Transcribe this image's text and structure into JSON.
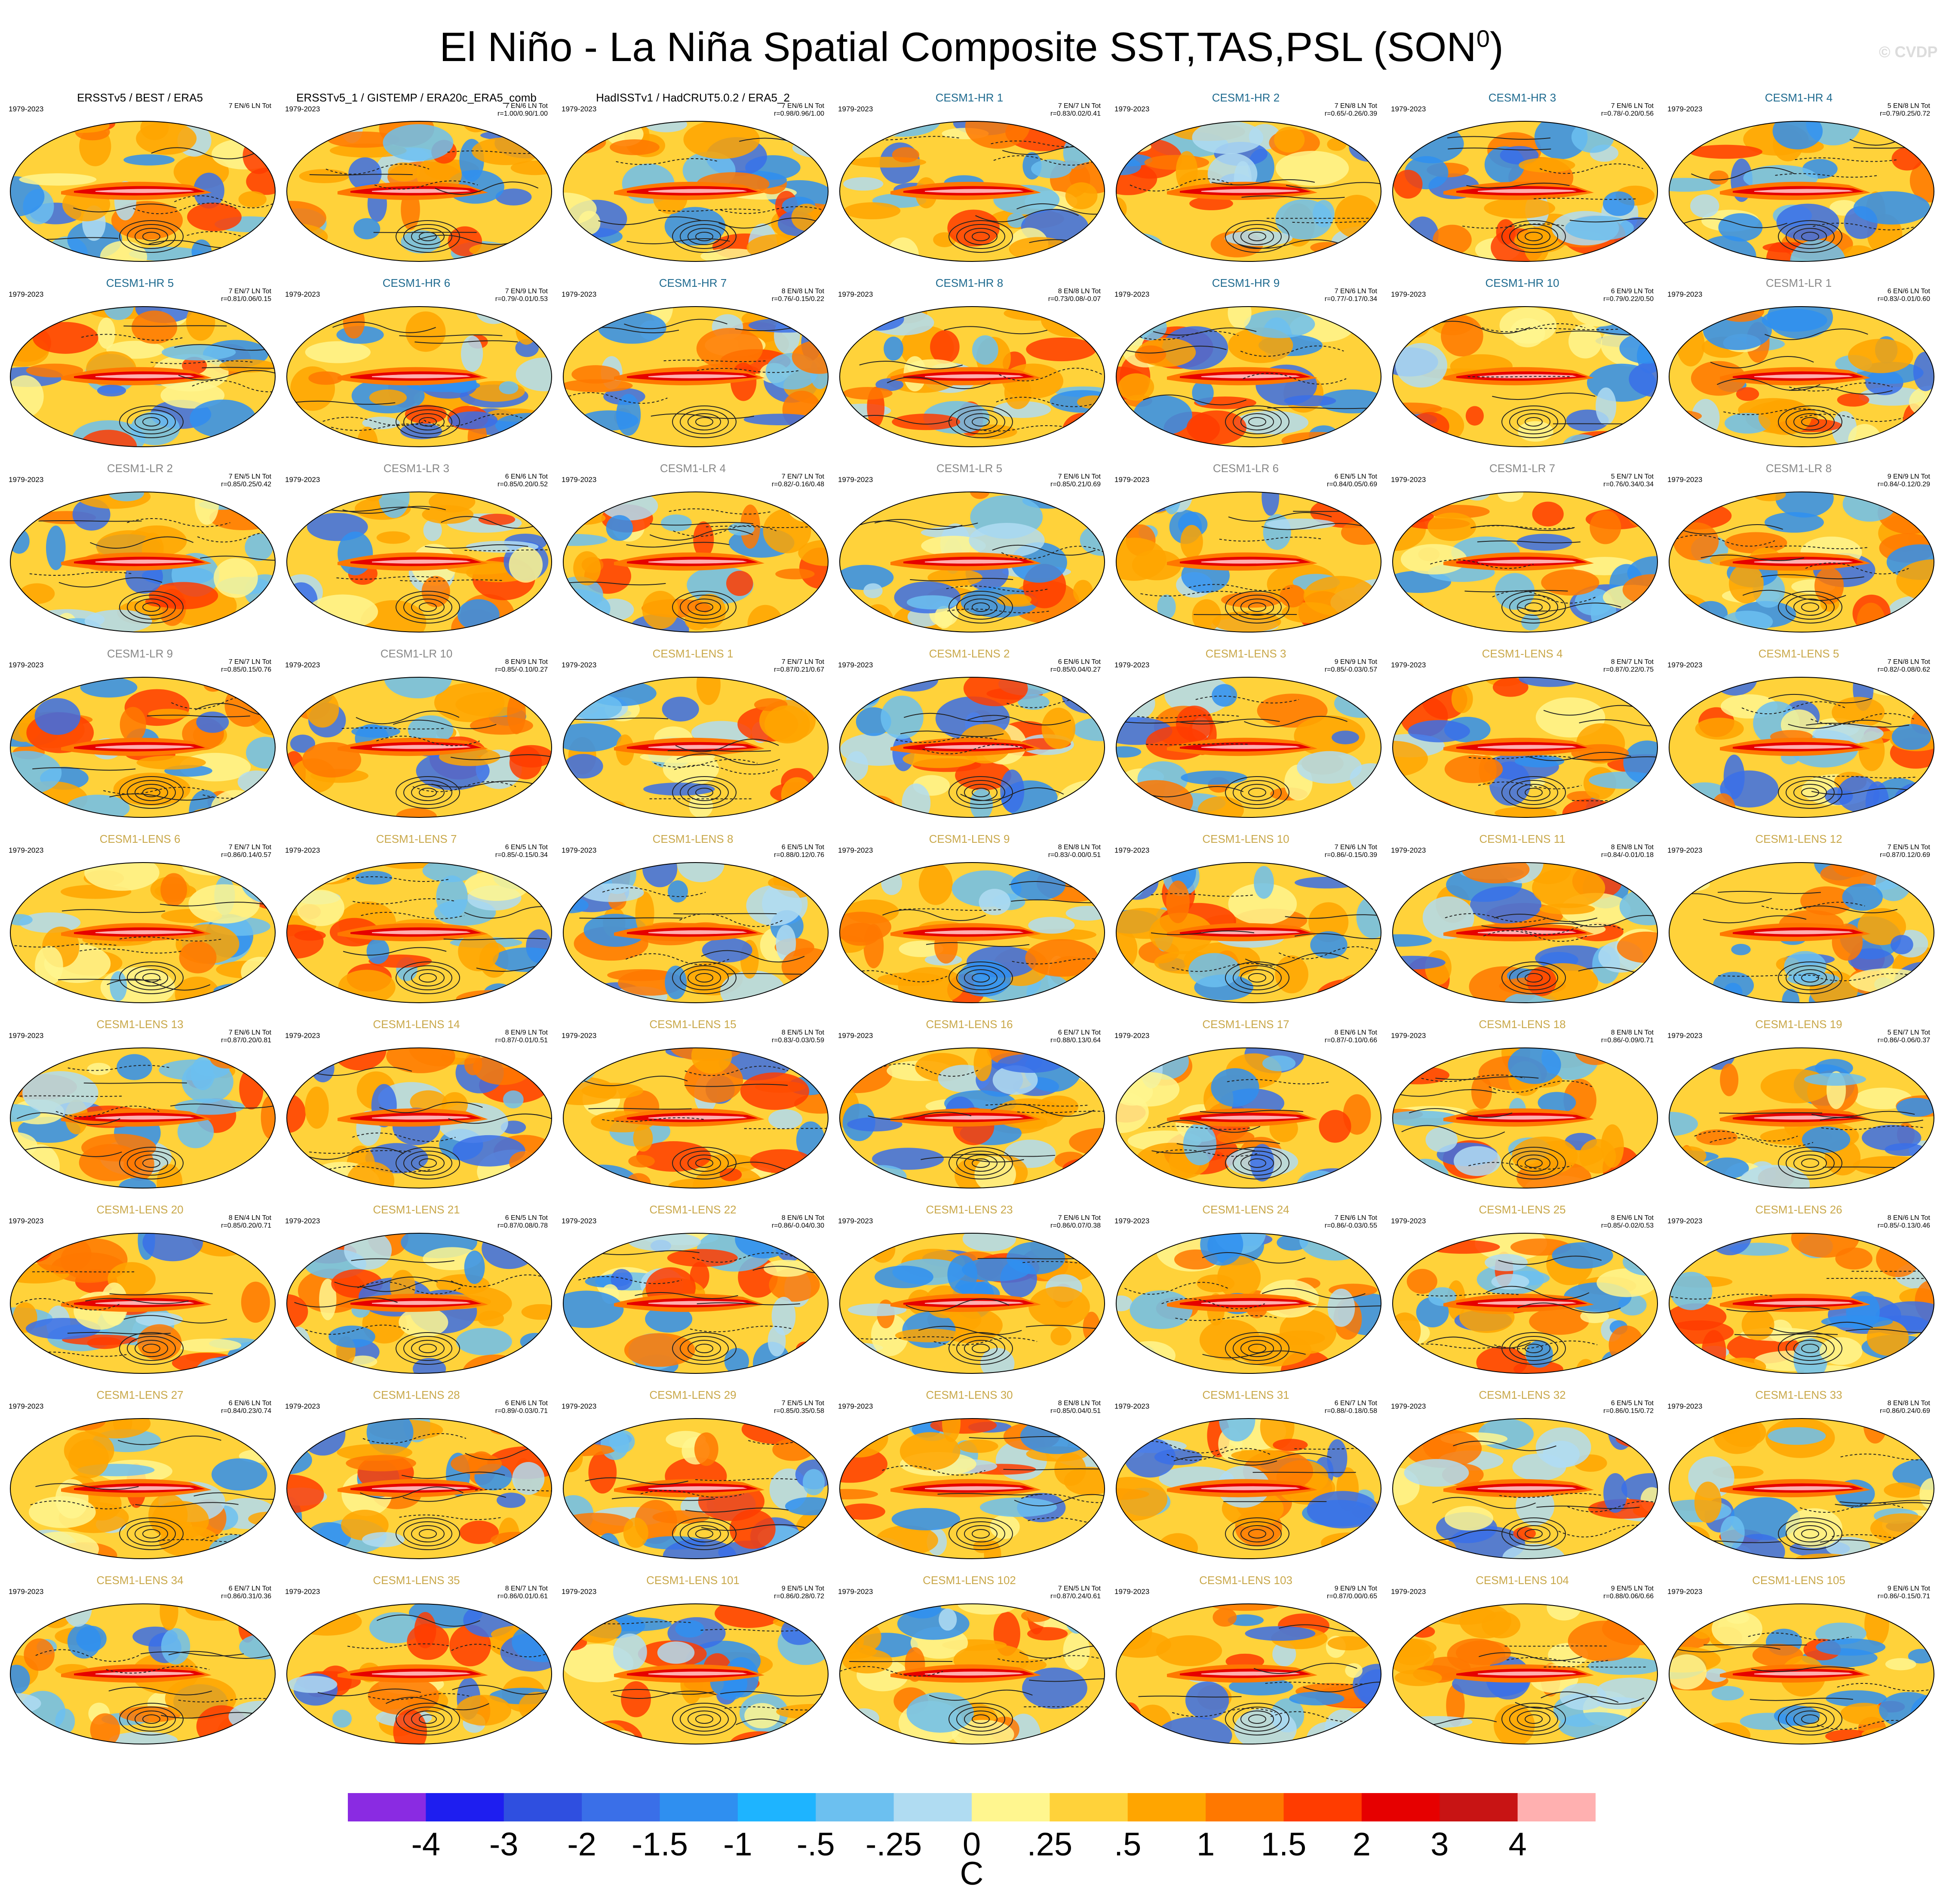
{
  "title": "El Niño - La Niña Spatial Composite SST,TAS,PSL (SON",
  "title_sup": "0",
  "title_end": ")",
  "watermark": "© CVDP",
  "colors": {
    "obs_title": "#000000",
    "hr_title": "#1e6a8f",
    "lr_title": "#888888",
    "lens_title": "#c9a84a"
  },
  "panels": [
    {
      "name": "ERSSTv5 / BEST / ERA5",
      "group": "obs",
      "period": "1979-2023",
      "counts": "7 EN/6 LN Tot",
      "stats": ""
    },
    {
      "name": "ERSSTv5_1 / GISTEMP / ERA20c_ERA5_comb",
      "group": "obs",
      "period": "1979-2023",
      "counts": "7 EN/6 LN Tot",
      "stats": "r=1.00/0.90/1.00"
    },
    {
      "name": "HadISSTv1 / HadCRUT5.0.2 / ERA5_2",
      "group": "obs",
      "period": "1979-2023",
      "counts": "7 EN/6 LN Tot",
      "stats": "r=0.98/0.96/1.00"
    },
    {
      "name": "CESM1-HR 1",
      "group": "hr",
      "period": "1979-2023",
      "counts": "7 EN/7 LN Tot",
      "stats": "r=0.83/0.02/0.41"
    },
    {
      "name": "CESM1-HR 2",
      "group": "hr",
      "period": "1979-2023",
      "counts": "7 EN/8 LN Tot",
      "stats": "r=0.65/-0.26/0.39"
    },
    {
      "name": "CESM1-HR 3",
      "group": "hr",
      "period": "1979-2023",
      "counts": "7 EN/6 LN Tot",
      "stats": "r=0.78/-0.20/0.56"
    },
    {
      "name": "CESM1-HR 4",
      "group": "hr",
      "period": "1979-2023",
      "counts": "5 EN/8 LN Tot",
      "stats": "r=0.79/0.25/0.72"
    },
    {
      "name": "CESM1-HR 5",
      "group": "hr",
      "period": "1979-2023",
      "counts": "7 EN/7 LN Tot",
      "stats": "r=0.81/0.06/0.15"
    },
    {
      "name": "CESM1-HR 6",
      "group": "hr",
      "period": "1979-2023",
      "counts": "7 EN/9 LN Tot",
      "stats": "r=0.79/-0.01/0.53"
    },
    {
      "name": "CESM1-HR 7",
      "group": "hr",
      "period": "1979-2023",
      "counts": "8 EN/8 LN Tot",
      "stats": "r=0.76/-0.15/0.22"
    },
    {
      "name": "CESM1-HR 8",
      "group": "hr",
      "period": "1979-2023",
      "counts": "8 EN/8 LN Tot",
      "stats": "r=0.73/0.08/-0.07"
    },
    {
      "name": "CESM1-HR 9",
      "group": "hr",
      "period": "1979-2023",
      "counts": "7 EN/6 LN Tot",
      "stats": "r=0.77/-0.17/0.34"
    },
    {
      "name": "CESM1-HR 10",
      "group": "hr",
      "period": "1979-2023",
      "counts": "6 EN/9 LN Tot",
      "stats": "r=0.79/0.22/0.50"
    },
    {
      "name": "CESM1-LR 1",
      "group": "lr",
      "period": "1979-2023",
      "counts": "6 EN/6 LN Tot",
      "stats": "r=0.83/-0.01/0.60"
    },
    {
      "name": "CESM1-LR 2",
      "group": "lr",
      "period": "1979-2023",
      "counts": "7 EN/5 LN Tot",
      "stats": "r=0.85/0.25/0.42"
    },
    {
      "name": "CESM1-LR 3",
      "group": "lr",
      "period": "1979-2023",
      "counts": "6 EN/6 LN Tot",
      "stats": "r=0.85/0.20/0.52"
    },
    {
      "name": "CESM1-LR 4",
      "group": "lr",
      "period": "1979-2023",
      "counts": "7 EN/7 LN Tot",
      "stats": "r=0.82/-0.16/0.48"
    },
    {
      "name": "CESM1-LR 5",
      "group": "lr",
      "period": "1979-2023",
      "counts": "7 EN/6 LN Tot",
      "stats": "r=0.85/0.21/0.69"
    },
    {
      "name": "CESM1-LR 6",
      "group": "lr",
      "period": "1979-2023",
      "counts": "6 EN/5 LN Tot",
      "stats": "r=0.84/0.05/0.69"
    },
    {
      "name": "CESM1-LR 7",
      "group": "lr",
      "period": "1979-2023",
      "counts": "5 EN/7 LN Tot",
      "stats": "r=0.76/0.34/0.34"
    },
    {
      "name": "CESM1-LR 8",
      "group": "lr",
      "period": "1979-2023",
      "counts": "9 EN/9 LN Tot",
      "stats": "r=0.84/-0.12/0.29"
    },
    {
      "name": "CESM1-LR 9",
      "group": "lr",
      "period": "1979-2023",
      "counts": "7 EN/7 LN Tot",
      "stats": "r=0.85/0.15/0.76"
    },
    {
      "name": "CESM1-LR 10",
      "group": "lr",
      "period": "1979-2023",
      "counts": "8 EN/9 LN Tot",
      "stats": "r=0.85/-0.10/0.27"
    },
    {
      "name": "CESM1-LENS 1",
      "group": "lens",
      "period": "1979-2023",
      "counts": "7 EN/7 LN Tot",
      "stats": "r=0.87/0.21/0.67"
    },
    {
      "name": "CESM1-LENS 2",
      "group": "lens",
      "period": "1979-2023",
      "counts": "6 EN/6 LN Tot",
      "stats": "r=0.85/0.04/0.27"
    },
    {
      "name": "CESM1-LENS 3",
      "group": "lens",
      "period": "1979-2023",
      "counts": "9 EN/9 LN Tot",
      "stats": "r=0.85/-0.03/0.57"
    },
    {
      "name": "CESM1-LENS 4",
      "group": "lens",
      "period": "1979-2023",
      "counts": "8 EN/7 LN Tot",
      "stats": "r=0.87/0.22/0.75"
    },
    {
      "name": "CESM1-LENS 5",
      "group": "lens",
      "period": "1979-2023",
      "counts": "7 EN/8 LN Tot",
      "stats": "r=0.82/-0.08/0.62"
    },
    {
      "name": "CESM1-LENS 6",
      "group": "lens",
      "period": "1979-2023",
      "counts": "7 EN/7 LN Tot",
      "stats": "r=0.86/0.14/0.57"
    },
    {
      "name": "CESM1-LENS 7",
      "group": "lens",
      "period": "1979-2023",
      "counts": "6 EN/5 LN Tot",
      "stats": "r=0.85/-0.15/0.34"
    },
    {
      "name": "CESM1-LENS 8",
      "group": "lens",
      "period": "1979-2023",
      "counts": "6 EN/5 LN Tot",
      "stats": "r=0.88/0.12/0.76"
    },
    {
      "name": "CESM1-LENS 9",
      "group": "lens",
      "period": "1979-2023",
      "counts": "8 EN/8 LN Tot",
      "stats": "r=0.83/-0.00/0.51"
    },
    {
      "name": "CESM1-LENS 10",
      "group": "lens",
      "period": "1979-2023",
      "counts": "7 EN/6 LN Tot",
      "stats": "r=0.86/-0.15/0.39"
    },
    {
      "name": "CESM1-LENS 11",
      "group": "lens",
      "period": "1979-2023",
      "counts": "8 EN/8 LN Tot",
      "stats": "r=0.84/-0.01/0.18"
    },
    {
      "name": "CESM1-LENS 12",
      "group": "lens",
      "period": "1979-2023",
      "counts": "7 EN/5 LN Tot",
      "stats": "r=0.87/0.12/0.69"
    },
    {
      "name": "CESM1-LENS 13",
      "group": "lens",
      "period": "1979-2023",
      "counts": "7 EN/6 LN Tot",
      "stats": "r=0.87/0.20/0.81"
    },
    {
      "name": "CESM1-LENS 14",
      "group": "lens",
      "period": "1979-2023",
      "counts": "8 EN/9 LN Tot",
      "stats": "r=0.87/-0.01/0.51"
    },
    {
      "name": "CESM1-LENS 15",
      "group": "lens",
      "period": "1979-2023",
      "counts": "8 EN/5 LN Tot",
      "stats": "r=0.83/-0.03/0.59"
    },
    {
      "name": "CESM1-LENS 16",
      "group": "lens",
      "period": "1979-2023",
      "counts": "6 EN/7 LN Tot",
      "stats": "r=0.88/0.13/0.64"
    },
    {
      "name": "CESM1-LENS 17",
      "group": "lens",
      "period": "1979-2023",
      "counts": "8 EN/6 LN Tot",
      "stats": "r=0.87/-0.10/0.66"
    },
    {
      "name": "CESM1-LENS 18",
      "group": "lens",
      "period": "1979-2023",
      "counts": "8 EN/8 LN Tot",
      "stats": "r=0.86/-0.09/0.71"
    },
    {
      "name": "CESM1-LENS 19",
      "group": "lens",
      "period": "1979-2023",
      "counts": "5 EN/7 LN Tot",
      "stats": "r=0.86/-0.06/0.37"
    },
    {
      "name": "CESM1-LENS 20",
      "group": "lens",
      "period": "1979-2023",
      "counts": "8 EN/4 LN Tot",
      "stats": "r=0.85/0.20/0.71"
    },
    {
      "name": "CESM1-LENS 21",
      "group": "lens",
      "period": "1979-2023",
      "counts": "6 EN/5 LN Tot",
      "stats": "r=0.87/0.08/0.78"
    },
    {
      "name": "CESM1-LENS 22",
      "group": "lens",
      "period": "1979-2023",
      "counts": "8 EN/6 LN Tot",
      "stats": "r=0.86/-0.04/0.30"
    },
    {
      "name": "CESM1-LENS 23",
      "group": "lens",
      "period": "1979-2023",
      "counts": "7 EN/6 LN Tot",
      "stats": "r=0.86/0.07/0.38"
    },
    {
      "name": "CESM1-LENS 24",
      "group": "lens",
      "period": "1979-2023",
      "counts": "7 EN/6 LN Tot",
      "stats": "r=0.86/-0.03/0.55"
    },
    {
      "name": "CESM1-LENS 25",
      "group": "lens",
      "period": "1979-2023",
      "counts": "8 EN/6 LN Tot",
      "stats": "r=0.85/-0.02/0.53"
    },
    {
      "name": "CESM1-LENS 26",
      "group": "lens",
      "period": "1979-2023",
      "counts": "8 EN/6 LN Tot",
      "stats": "r=0.85/-0.13/0.46"
    },
    {
      "name": "CESM1-LENS 27",
      "group": "lens",
      "period": "1979-2023",
      "counts": "6 EN/6 LN Tot",
      "stats": "r=0.84/0.23/0.74"
    },
    {
      "name": "CESM1-LENS 28",
      "group": "lens",
      "period": "1979-2023",
      "counts": "6 EN/6 LN Tot",
      "stats": "r=0.89/-0.03/0.71"
    },
    {
      "name": "CESM1-LENS 29",
      "group": "lens",
      "period": "1979-2023",
      "counts": "7 EN/5 LN Tot",
      "stats": "r=0.85/0.35/0.58"
    },
    {
      "name": "CESM1-LENS 30",
      "group": "lens",
      "period": "1979-2023",
      "counts": "8 EN/8 LN Tot",
      "stats": "r=0.85/0.04/0.51"
    },
    {
      "name": "CESM1-LENS 31",
      "group": "lens",
      "period": "1979-2023",
      "counts": "6 EN/7 LN Tot",
      "stats": "r=0.88/-0.18/0.58"
    },
    {
      "name": "CESM1-LENS 32",
      "group": "lens",
      "period": "1979-2023",
      "counts": "6 EN/5 LN Tot",
      "stats": "r=0.86/0.15/0.72"
    },
    {
      "name": "CESM1-LENS 33",
      "group": "lens",
      "period": "1979-2023",
      "counts": "8 EN/8 LN Tot",
      "stats": "r=0.86/0.24/0.69"
    },
    {
      "name": "CESM1-LENS 34",
      "group": "lens",
      "period": "1979-2023",
      "counts": "6 EN/7 LN Tot",
      "stats": "r=0.86/0.31/0.36"
    },
    {
      "name": "CESM1-LENS 35",
      "group": "lens",
      "period": "1979-2023",
      "counts": "8 EN/7 LN Tot",
      "stats": "r=0.86/0.01/0.61"
    },
    {
      "name": "CESM1-LENS 101",
      "group": "lens",
      "period": "1979-2023",
      "counts": "9 EN/5 LN Tot",
      "stats": "r=0.86/0.28/0.72"
    },
    {
      "name": "CESM1-LENS 102",
      "group": "lens",
      "period": "1979-2023",
      "counts": "7 EN/5 LN Tot",
      "stats": "r=0.87/0.24/0.61"
    },
    {
      "name": "CESM1-LENS 103",
      "group": "lens",
      "period": "1979-2023",
      "counts": "9 EN/9 LN Tot",
      "stats": "r=0.87/0.00/0.65"
    },
    {
      "name": "CESM1-LENS 104",
      "group": "lens",
      "period": "1979-2023",
      "counts": "9 EN/5 LN Tot",
      "stats": "r=0.88/0.06/0.66"
    },
    {
      "name": "CESM1-LENS 105",
      "group": "lens",
      "period": "1979-2023",
      "counts": "9 EN/6 LN Tot",
      "stats": "r=0.86/-0.15/0.71"
    }
  ],
  "colorbar": {
    "colors": [
      "#8a2be2",
      "#1e1ef0",
      "#2f4fe0",
      "#3a6fe8",
      "#2f8ff0",
      "#1eb4ff",
      "#6cc0f0",
      "#b0dcf2",
      "#fff68f",
      "#ffd23a",
      "#ffa500",
      "#ff7800",
      "#ff3c00",
      "#e60000",
      "#c81414",
      "#ffb0b0"
    ],
    "labels": [
      "-4",
      "-3",
      "-2",
      "-1.5",
      "-1",
      "-.5",
      "-.25",
      "0",
      ".25",
      ".5",
      "1",
      "1.5",
      "2",
      "3",
      "4"
    ],
    "units": "C"
  }
}
